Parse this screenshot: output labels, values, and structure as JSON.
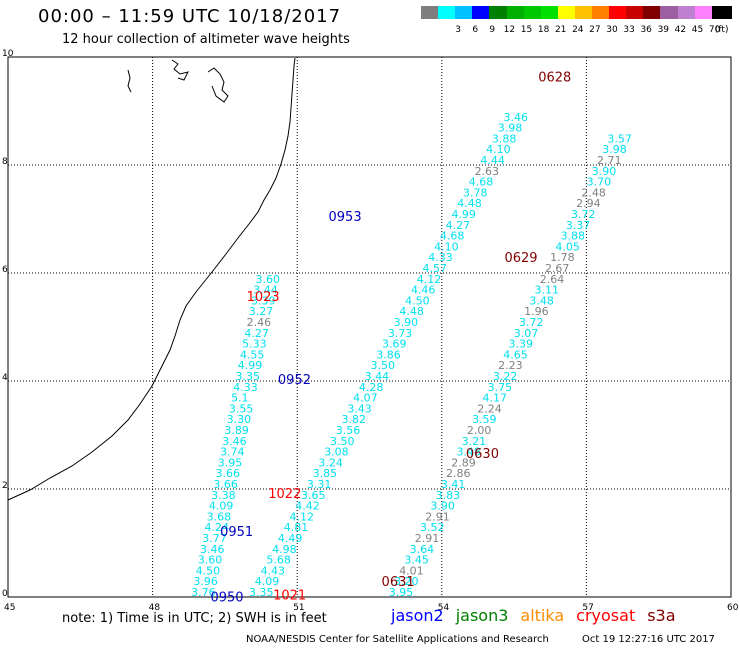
{
  "header": {
    "title": "00:00 – 11:59 UTC 10/18/2017",
    "subtitle": "12 hour collection of altimeter wave heights"
  },
  "legend": {
    "units": "(ft)",
    "bins": [
      {
        "label": "",
        "color": "#7f7f7f"
      },
      {
        "label": "3",
        "color": "#00ffff"
      },
      {
        "label": "6",
        "color": "#00c0ff"
      },
      {
        "label": "9",
        "color": "#0000ff"
      },
      {
        "label": "12",
        "color": "#008000"
      },
      {
        "label": "15",
        "color": "#00b000"
      },
      {
        "label": "18",
        "color": "#00c800"
      },
      {
        "label": "21",
        "color": "#00e000"
      },
      {
        "label": "24",
        "color": "#ffff00"
      },
      {
        "label": "27",
        "color": "#ffc000"
      },
      {
        "label": "30",
        "color": "#ff8000"
      },
      {
        "label": "33",
        "color": "#ff0000"
      },
      {
        "label": "36",
        "color": "#c80000"
      },
      {
        "label": "39",
        "color": "#800000"
      },
      {
        "label": "42",
        "color": "#9c60a0"
      },
      {
        "label": "45",
        "color": "#c080d0"
      },
      {
        "label": "70",
        "color": "#ff80ff"
      },
      {
        "label": "",
        "color": "#000000"
      }
    ]
  },
  "map": {
    "lon_ticks": [
      "45",
      "48",
      "51",
      "54",
      "57",
      "60"
    ],
    "lat_ticks": [
      "0",
      "2",
      "4",
      "6",
      "8",
      "10"
    ],
    "lon_range": [
      45,
      60
    ],
    "lat_range": [
      0,
      10
    ],
    "colors": {
      "c": "#00e0f0",
      "g": "#808080",
      "b": "#0000c0",
      "r": "#ff0000",
      "m": "#800000"
    },
    "tracks": [
      {
        "x0": 3.8,
        "y0": 3.76,
        "dx": 0.046,
        "lat_step": 0.2,
        "color": "c",
        "values": [
          "3.76",
          "3.96",
          "4.50",
          "3.60",
          "3.46",
          "3.77",
          "4.24",
          "3.68",
          "4.09",
          "3.38",
          "3.66",
          "3.66",
          "3.95",
          "3.74",
          "3.46",
          "3.89",
          "3.30",
          "3.55",
          "5.1",
          "4.33",
          "3.35",
          "4.99",
          "4.55",
          "5.33",
          "4.27",
          "2.46",
          "3.27",
          "3.39",
          "3.44",
          "3.60"
        ],
        "gray": [
          25
        ]
      },
      {
        "x0": 5.0,
        "y0": 3.35,
        "dx": 0.12,
        "lat_step": 0.2,
        "color": "c",
        "values": [
          "3.35",
          "4.09",
          "4.43",
          "5.68",
          "4.98",
          "4.49",
          "4.81",
          "4.12",
          "4.42",
          "3.65",
          "3.31",
          "3.85",
          "3.24",
          "3.08",
          "3.50",
          "3.56",
          "3.82",
          "3.43",
          "4.07",
          "4.28",
          "3.44",
          "3.50",
          "3.86",
          "3.69",
          "3.73",
          "3.90",
          "4.48",
          "4.50",
          "4.46",
          "4.12",
          "4.57",
          "4.33",
          "4.10",
          "4.68",
          "4.27",
          "4.99",
          "4.48",
          "3.78",
          "4.68",
          "2.63",
          "4.44",
          "4.10",
          "3.88",
          "3.98",
          "3.46"
        ],
        "gray": [
          39
        ]
      },
      {
        "x0": 7.9,
        "y0": 3.95,
        "dx": 0.108,
        "lat_step": 0.2,
        "color": "c",
        "values": [
          "3.95",
          "3.20",
          "4.01",
          "3.45",
          "3.64",
          "2.91",
          "3.52",
          "2.91",
          "3.90",
          "3.83",
          "3.41",
          "2.86",
          "2.89",
          "3.48",
          "3.21",
          "2.00",
          "3.59",
          "2.24",
          "4.17",
          "3.75",
          "3.22",
          "2.23",
          "4.65",
          "3.39",
          "3.07",
          "3.72",
          "1.96",
          "3.48",
          "3.11",
          "2.64",
          "2.67",
          "1.78",
          "4.05",
          "3.88",
          "3.37",
          "3.72",
          "2.94",
          "2.48",
          "3.70",
          "3.90",
          "2.71",
          "3.98",
          "3.57"
        ],
        "gray": [
          2,
          5,
          7,
          11,
          12,
          15,
          17,
          21,
          26,
          29,
          30,
          31,
          36,
          37,
          40
        ]
      }
    ],
    "pass_labels": [
      {
        "text": "0950",
        "lon": 49.2,
        "lat": -0.08,
        "color": "b"
      },
      {
        "text": "1021",
        "lon": 50.5,
        "lat": -0.05,
        "color": "r"
      },
      {
        "text": "0631",
        "lon": 52.75,
        "lat": 0.2,
        "color": "m"
      },
      {
        "text": "0951",
        "lon": 49.4,
        "lat": 1.13,
        "color": "b"
      },
      {
        "text": "1022",
        "lon": 50.4,
        "lat": 1.83,
        "color": "r"
      },
      {
        "text": "0630",
        "lon": 54.5,
        "lat": 2.57,
        "color": "m"
      },
      {
        "text": "0952",
        "lon": 50.6,
        "lat": 3.94,
        "color": "b"
      },
      {
        "text": "1023",
        "lon": 49.95,
        "lat": 5.48,
        "color": "r"
      },
      {
        "text": "0629",
        "lon": 55.3,
        "lat": 6.2,
        "color": "m"
      },
      {
        "text": "0953",
        "lon": 51.65,
        "lat": 6.96,
        "color": "b"
      },
      {
        "text": "0628",
        "lon": 56.0,
        "lat": 9.55,
        "color": "m"
      }
    ]
  },
  "footer": {
    "note": "note:  1) Time is in UTC;  2) SWH is in feet",
    "satellites": [
      {
        "name": "jason2",
        "color": "#0000ff"
      },
      {
        "name": "jason3",
        "color": "#008000"
      },
      {
        "name": "altika",
        "color": "#ff8c00"
      },
      {
        "name": "cryosat",
        "color": "#ff0000"
      },
      {
        "name": "s3a",
        "color": "#800000"
      }
    ],
    "credit": "NOAA/NESDIS Center for Satellite Applications and Research",
    "timestamp": "Oct 19 12:27:16 UTC 2017"
  }
}
